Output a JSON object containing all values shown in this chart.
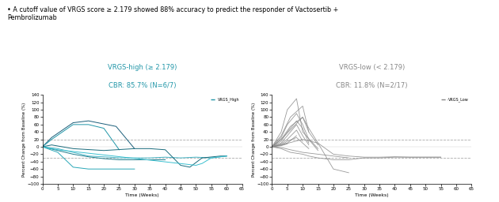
{
  "bullet_text": "A cutoff value of VRGS score ≥ 2.179 showed 88% accuracy to predict the responder of Vactosertib +\nPembrolizumab",
  "left_title1": "VRGS-high (≥ 2.179)",
  "left_title2": "CBR: 85.7% (N=6/7)",
  "right_title1": "VRGS-low (< 2.179)",
  "right_title2": "CBR: 11.8% (N=2/17)",
  "left_legend": "VRGS_High",
  "right_legend": "VRGS_Low",
  "xlabel": "Time (Weeks)",
  "ylabel": "Percent Change from Baseline (%)",
  "ylim": [
    -100,
    140
  ],
  "xlim": [
    0,
    65
  ],
  "yticks": [
    -100,
    -80,
    -60,
    -40,
    -20,
    0,
    20,
    40,
    60,
    80,
    100,
    120,
    140
  ],
  "xticks": [
    0,
    5,
    10,
    15,
    20,
    25,
    30,
    35,
    40,
    45,
    50,
    55,
    60,
    65
  ],
  "hline1": 20,
  "hline2": -30,
  "blue_color": "#2196a8",
  "blue_dark": "#1a5e7a",
  "blue_light": "#4ab8c8",
  "blue_mid1": "#1e7c8c",
  "blue_mid2": "#2aa8b8",
  "blue_mid3": "#1a6b7c",
  "blue_mid4": "#3bc0d0",
  "gray_color": "#888888",
  "left_lines": [
    {
      "x": [
        0,
        3,
        10,
        15,
        18,
        24,
        30
      ],
      "y": [
        0,
        25,
        65,
        70,
        65,
        55,
        -5
      ]
    },
    {
      "x": [
        0,
        3,
        10,
        15,
        20,
        25
      ],
      "y": [
        0,
        20,
        60,
        60,
        50,
        -8
      ]
    },
    {
      "x": [
        0,
        5,
        15,
        20,
        25,
        35,
        40,
        45,
        50,
        55,
        60
      ],
      "y": [
        0,
        -5,
        -25,
        -27,
        -30,
        -30,
        -28,
        -30,
        -28,
        -30,
        -25
      ]
    },
    {
      "x": [
        0,
        5,
        10,
        15,
        20,
        25,
        30,
        35,
        40
      ],
      "y": [
        0,
        -10,
        -20,
        -27,
        -32,
        -35,
        -35,
        -35,
        -35
      ]
    },
    {
      "x": [
        0,
        5,
        10,
        15,
        20,
        25,
        30
      ],
      "y": [
        0,
        -15,
        -55,
        -60,
        -60,
        -60,
        -60
      ]
    },
    {
      "x": [
        0,
        3,
        10,
        20,
        30,
        35,
        40,
        45,
        48,
        52,
        58,
        60
      ],
      "y": [
        0,
        5,
        -5,
        -10,
        -5,
        -5,
        -8,
        -50,
        -55,
        -30,
        -25,
        -25
      ]
    },
    {
      "x": [
        0,
        5,
        50,
        52,
        55,
        60
      ],
      "y": [
        0,
        -8,
        -50,
        -45,
        -30,
        -25
      ]
    }
  ],
  "right_lines": [
    {
      "x": [
        0,
        3,
        10,
        15,
        20,
        25,
        30,
        35,
        40,
        45,
        50,
        55
      ],
      "y": [
        0,
        5,
        20,
        10,
        -20,
        -25,
        -28,
        -28,
        -27,
        -28,
        -28,
        -28
      ]
    },
    {
      "x": [
        0,
        3,
        10,
        12,
        15,
        20,
        25
      ],
      "y": [
        0,
        20,
        80,
        50,
        10,
        -60,
        -70
      ]
    },
    {
      "x": [
        0,
        3,
        5,
        8,
        10,
        15
      ],
      "y": [
        0,
        40,
        100,
        130,
        40,
        -5
      ]
    },
    {
      "x": [
        0,
        3,
        6,
        10,
        12
      ],
      "y": [
        0,
        30,
        80,
        110,
        40
      ]
    },
    {
      "x": [
        0,
        3,
        5,
        8,
        10,
        12,
        15
      ],
      "y": [
        0,
        25,
        60,
        90,
        60,
        20,
        -10
      ]
    },
    {
      "x": [
        0,
        3,
        5,
        8,
        10,
        12
      ],
      "y": [
        0,
        15,
        40,
        70,
        50,
        10
      ]
    },
    {
      "x": [
        0,
        3,
        6,
        10,
        12,
        15
      ],
      "y": [
        0,
        20,
        55,
        80,
        40,
        5
      ]
    },
    {
      "x": [
        0,
        3,
        5,
        8,
        10,
        12
      ],
      "y": [
        0,
        10,
        30,
        60,
        30,
        5
      ]
    },
    {
      "x": [
        0,
        3,
        5,
        8,
        10
      ],
      "y": [
        0,
        8,
        20,
        45,
        15
      ]
    },
    {
      "x": [
        0,
        3,
        5,
        8
      ],
      "y": [
        0,
        5,
        10,
        30
      ]
    },
    {
      "x": [
        0,
        3,
        5
      ],
      "y": [
        0,
        3,
        8
      ]
    },
    {
      "x": [
        0,
        3,
        6,
        10,
        12,
        15,
        20,
        25,
        30,
        35,
        40,
        45,
        50,
        55
      ],
      "y": [
        0,
        -5,
        -15,
        -20,
        -25,
        -30,
        -35,
        -35,
        -30,
        -30,
        -28,
        -28,
        -28,
        -28
      ]
    },
    {
      "x": [
        0,
        3,
        6,
        10,
        15,
        20,
        25
      ],
      "y": [
        0,
        -2,
        -8,
        -15,
        -20,
        -25,
        -30
      ]
    },
    {
      "x": [
        0,
        3,
        5,
        8,
        10,
        12
      ],
      "y": [
        0,
        5,
        15,
        25,
        10,
        -5
      ]
    }
  ]
}
